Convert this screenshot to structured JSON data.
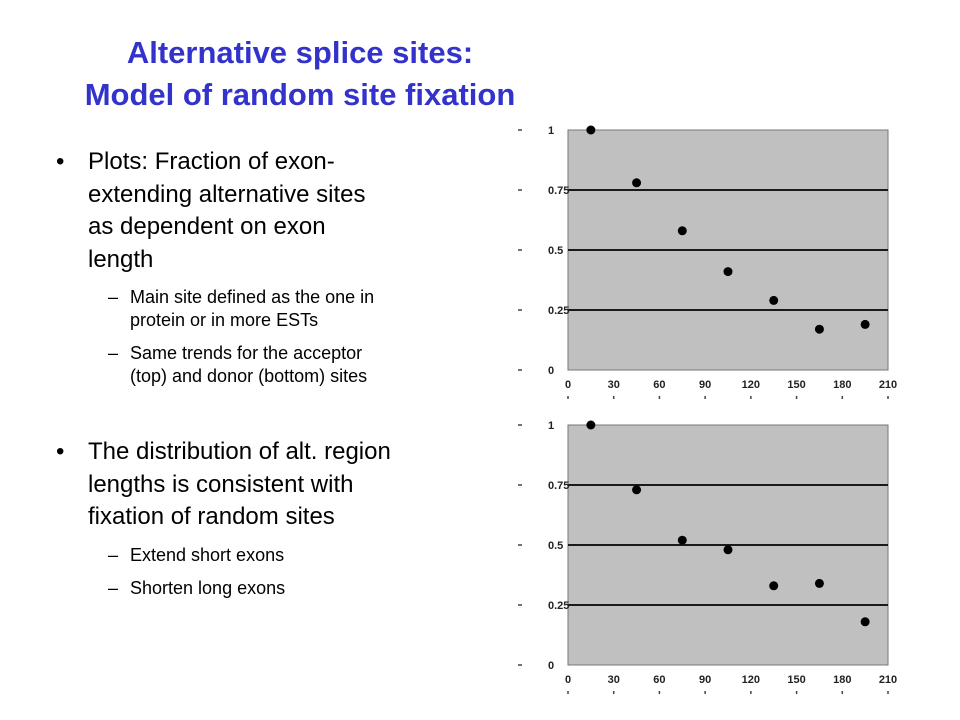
{
  "title": {
    "line1": "Alternative splice sites:",
    "line2": "Model of random site fixation"
  },
  "bullets": [
    {
      "text": "Plots: Fraction of exon-extending alternative sites as dependent on exon length",
      "lines": [
        "Plots: Fraction of exon-",
        "extending alternative sites",
        "as dependent on exon",
        "length"
      ],
      "subs": [
        {
          "lines": [
            "Main site defined as the one in",
            "protein or in more ESTs"
          ]
        },
        {
          "lines": [
            "Same trends for the acceptor",
            "(top) and donor (bottom) sites"
          ]
        }
      ]
    },
    {
      "text": "The distribution of alt. region lengths is consistent with fixation of random sites",
      "lines": [
        "The distribution of alt. region",
        "lengths is consistent with",
        "fixation of random sites"
      ],
      "subs": [
        {
          "lines": [
            "Extend short exons"
          ]
        },
        {
          "lines": [
            "Shorten long exons"
          ]
        }
      ]
    }
  ],
  "chart_data": [
    {
      "type": "scatter",
      "series": [
        {
          "x": [
            15,
            45,
            75,
            105,
            135,
            165,
            195
          ],
          "y": [
            1.0,
            0.78,
            0.58,
            0.41,
            0.29,
            0.17,
            0.19
          ]
        }
      ],
      "xlim": [
        0,
        210
      ],
      "ylim": [
        0,
        1
      ],
      "xticks": [
        "0",
        "30",
        "60",
        "90",
        "120",
        "150",
        "180",
        "210"
      ],
      "yticks": [
        "0",
        "0.25",
        "0.5",
        "0.75",
        "1"
      ],
      "grid": "horizontal",
      "plot_background": "#c0c0c0",
      "marker_color": "#000000"
    },
    {
      "type": "scatter",
      "series": [
        {
          "x": [
            15,
            45,
            75,
            105,
            135,
            165,
            195
          ],
          "y": [
            1.0,
            0.73,
            0.52,
            0.48,
            0.33,
            0.34,
            0.18
          ]
        }
      ],
      "xlim": [
        0,
        210
      ],
      "ylim": [
        0,
        1
      ],
      "xticks": [
        "0",
        "30",
        "60",
        "90",
        "120",
        "150",
        "180",
        "210"
      ],
      "yticks": [
        "0",
        "0.25",
        "0.5",
        "0.75",
        "1"
      ],
      "grid": "horizontal",
      "plot_background": "#c0c0c0",
      "marker_color": "#000000"
    }
  ]
}
